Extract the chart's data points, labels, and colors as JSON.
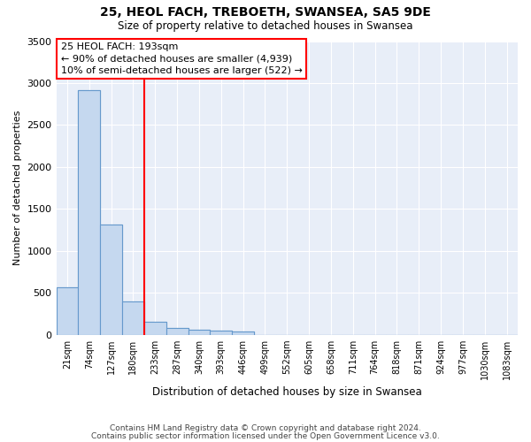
{
  "title": "25, HEOL FACH, TREBOETH, SWANSEA, SA5 9DE",
  "subtitle": "Size of property relative to detached houses in Swansea",
  "xlabel": "Distribution of detached houses by size in Swansea",
  "ylabel": "Number of detached properties",
  "bin_labels": [
    "21sqm",
    "74sqm",
    "127sqm",
    "180sqm",
    "233sqm",
    "287sqm",
    "340sqm",
    "393sqm",
    "446sqm",
    "499sqm",
    "552sqm",
    "605sqm",
    "658sqm",
    "711sqm",
    "764sqm",
    "818sqm",
    "871sqm",
    "924sqm",
    "977sqm",
    "1030sqm",
    "1083sqm"
  ],
  "bar_values": [
    560,
    2920,
    1310,
    400,
    155,
    80,
    55,
    50,
    40,
    0,
    0,
    0,
    0,
    0,
    0,
    0,
    0,
    0,
    0,
    0,
    0
  ],
  "bar_color": "#c5d8ef",
  "bar_edge_color": "#6699cc",
  "bg_color": "#e8eef8",
  "grid_color": "#ffffff",
  "red_line_bin": 3.5,
  "annotation_title": "25 HEOL FACH: 193sqm",
  "annotation_line1": "← 90% of detached houses are smaller (4,939)",
  "annotation_line2": "10% of semi-detached houses are larger (522) →",
  "ylim": [
    0,
    3500
  ],
  "yticks": [
    0,
    500,
    1000,
    1500,
    2000,
    2500,
    3000,
    3500
  ],
  "footer1": "Contains HM Land Registry data © Crown copyright and database right 2024.",
  "footer2": "Contains public sector information licensed under the Open Government Licence v3.0."
}
